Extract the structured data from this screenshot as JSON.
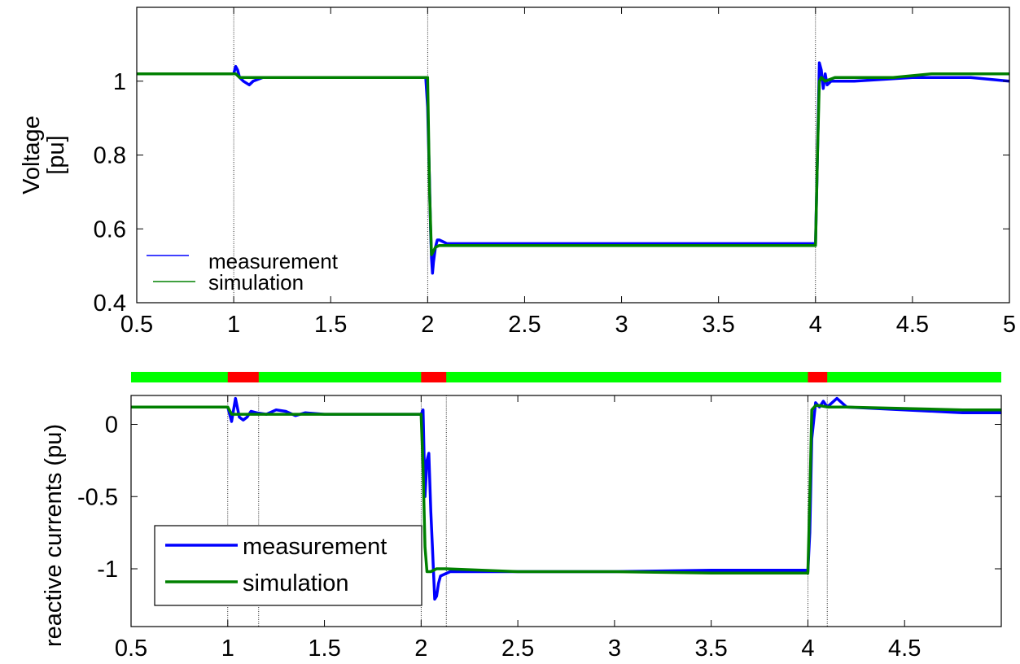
{
  "chart_data": [
    {
      "type": "line",
      "title": "",
      "xlabel": "",
      "ylabel": "Voltage\n[pu]",
      "ylabel_lines": [
        "Voltage",
        "[pu]"
      ],
      "xlim": [
        0.5,
        5
      ],
      "ylim": [
        0.4,
        1.2
      ],
      "xticks": [
        0.5,
        1,
        1.5,
        2,
        2.5,
        3,
        3.5,
        4,
        4.5,
        5
      ],
      "xtick_labels": [
        "0.5",
        "1",
        "1.5",
        "2",
        "2.5",
        "3",
        "3.5",
        "4",
        "4.5",
        "5"
      ],
      "yticks": [
        0.4,
        0.6,
        0.8,
        1
      ],
      "ytick_labels": [
        "0.4",
        "0.6",
        "0.8",
        "1"
      ],
      "grid": false,
      "legend_placement": "bottom-left",
      "event_lines": [
        1,
        2,
        4
      ],
      "series": [
        {
          "name": "measurement",
          "color": "#0000ff",
          "x": [
            0.5,
            0.99,
            1.0,
            1.01,
            1.02,
            1.03,
            1.05,
            1.08,
            1.1,
            1.15,
            1.2,
            1.3,
            1.5,
            1.7,
            1.9,
            1.99,
            2.0,
            2.01,
            2.015,
            2.02,
            2.025,
            2.03,
            2.04,
            2.05,
            2.06,
            2.08,
            2.1,
            2.15,
            2.2,
            2.25,
            3.0,
            3.99,
            4.0,
            4.01,
            4.02,
            4.03,
            4.04,
            4.05,
            4.06,
            4.08,
            4.1,
            4.15,
            4.2,
            4.5,
            4.8,
            5.0
          ],
          "y": [
            1.02,
            1.02,
            1.02,
            1.04,
            1.03,
            1.01,
            1.0,
            0.99,
            1.0,
            1.01,
            1.01,
            1.01,
            1.01,
            1.01,
            1.01,
            1.01,
            0.93,
            0.72,
            0.6,
            0.52,
            0.48,
            0.51,
            0.55,
            0.57,
            0.57,
            0.565,
            0.56,
            0.56,
            0.56,
            0.56,
            0.56,
            0.56,
            0.56,
            0.8,
            1.05,
            1.03,
            0.98,
            1.02,
            0.99,
            1.0,
            1.0,
            1.0,
            1.0,
            1.01,
            1.01,
            1.0
          ]
        },
        {
          "name": "simulation",
          "color": "#008000",
          "x": [
            0.5,
            0.99,
            1.0,
            1.01,
            1.03,
            1.05,
            1.1,
            1.2,
            1.5,
            1.9,
            1.99,
            2.0,
            2.01,
            2.02,
            2.03,
            2.04,
            2.06,
            2.1,
            2.3,
            3.0,
            3.99,
            4.0,
            4.01,
            4.02,
            4.03,
            4.05,
            4.1,
            4.2,
            4.4,
            4.6,
            5.0
          ],
          "y": [
            1.02,
            1.02,
            1.02,
            1.02,
            1.01,
            1.01,
            1.01,
            1.01,
            1.01,
            1.01,
            1.01,
            1.01,
            0.7,
            0.53,
            0.54,
            0.55,
            0.555,
            0.555,
            0.555,
            0.555,
            0.555,
            0.555,
            0.8,
            1.0,
            1.01,
            1.0,
            1.01,
            1.01,
            1.01,
            1.02,
            1.02
          ]
        }
      ]
    },
    {
      "type": "line",
      "title": "",
      "xlabel": "",
      "ylabel": "reactive currents (pu)",
      "xlim": [
        0.5,
        5
      ],
      "ylim": [
        -1.4,
        0.2
      ],
      "xticks": [
        0.5,
        1,
        1.5,
        2,
        2.5,
        3,
        3.5,
        4,
        4.5
      ],
      "xtick_labels": [
        "0.5",
        "1",
        "1.5",
        "2",
        "2.5",
        "3",
        "3.5",
        "4",
        "4.5"
      ],
      "yticks": [
        -1,
        -0.5,
        0
      ],
      "ytick_labels": [
        "-1",
        "-0.5",
        "0"
      ],
      "grid": false,
      "legend_placement": "bottom-left",
      "event_lines": [
        1,
        1.16,
        2,
        2.13,
        4,
        4.1
      ],
      "status_bar": {
        "normal_color": "#00ff00",
        "fault_color": "#ff0000",
        "fault_intervals": [
          [
            1.0,
            1.16
          ],
          [
            2.0,
            2.13
          ],
          [
            4.0,
            4.1
          ]
        ]
      },
      "series": [
        {
          "name": "measurement",
          "color": "#0000ff",
          "x": [
            0.5,
            0.99,
            1.0,
            1.02,
            1.04,
            1.06,
            1.08,
            1.1,
            1.12,
            1.15,
            1.2,
            1.25,
            1.3,
            1.35,
            1.4,
            1.5,
            1.99,
            2.0,
            2.01,
            2.02,
            2.03,
            2.04,
            2.05,
            2.06,
            2.07,
            2.08,
            2.09,
            2.1,
            2.15,
            2.2,
            2.5,
            3.0,
            3.5,
            3.99,
            4.0,
            4.01,
            4.02,
            4.04,
            4.06,
            4.08,
            4.1,
            4.15,
            4.2,
            4.5,
            4.8,
            5.0
          ],
          "y": [
            0.12,
            0.12,
            0.12,
            0.02,
            0.18,
            0.05,
            0.03,
            0.05,
            0.09,
            0.08,
            0.07,
            0.1,
            0.09,
            0.06,
            0.08,
            0.07,
            0.07,
            0.07,
            0.1,
            -0.5,
            -0.25,
            -0.2,
            -0.6,
            -0.9,
            -1.21,
            -1.19,
            -1.1,
            -1.05,
            -1.02,
            -1.02,
            -1.02,
            -1.02,
            -1.01,
            -1.01,
            -1.02,
            -0.75,
            -0.1,
            0.15,
            0.12,
            0.16,
            0.12,
            0.18,
            0.12,
            0.1,
            0.08,
            0.08
          ]
        },
        {
          "name": "simulation",
          "color": "#008000",
          "x": [
            0.5,
            0.99,
            1.0,
            1.02,
            1.05,
            1.1,
            1.16,
            1.5,
            1.99,
            2.0,
            2.01,
            2.02,
            2.03,
            2.05,
            2.08,
            2.1,
            2.13,
            2.5,
            3.0,
            3.5,
            3.99,
            4.0,
            4.01,
            4.02,
            4.04,
            4.06,
            4.1,
            4.2,
            4.5,
            4.8,
            5.0
          ],
          "y": [
            0.12,
            0.12,
            0.12,
            0.07,
            0.07,
            0.07,
            0.07,
            0.07,
            0.07,
            0.07,
            -0.3,
            -0.85,
            -1.02,
            -1.02,
            -1.0,
            -1.0,
            -1.0,
            -1.02,
            -1.02,
            -1.03,
            -1.03,
            -1.03,
            -0.5,
            0.1,
            0.13,
            0.13,
            0.12,
            0.12,
            0.11,
            0.1,
            0.1
          ]
        }
      ]
    }
  ]
}
